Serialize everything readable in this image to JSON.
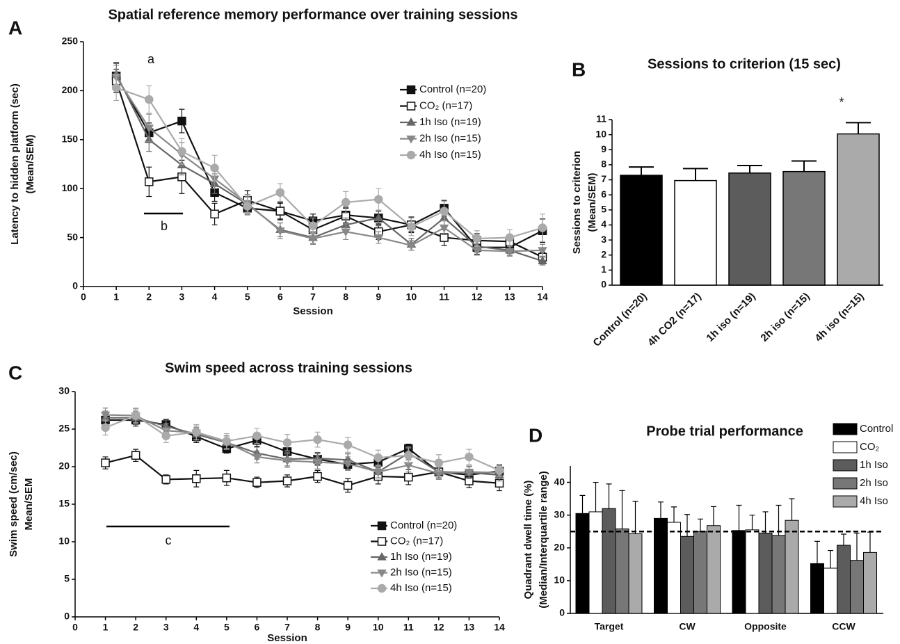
{
  "chart_data": [
    {
      "type": "line",
      "panel_label": "A",
      "title": "Spatial reference memory performance over training sessions",
      "xlabel": "Session",
      "ylabel": [
        "Latency to hidden platform (sec)",
        "(Mean/SEM)"
      ],
      "x": [
        1,
        2,
        3,
        4,
        5,
        6,
        7,
        8,
        9,
        10,
        11,
        12,
        13,
        14
      ],
      "xlim": [
        0,
        14
      ],
      "xticks": [
        0,
        1,
        2,
        3,
        4,
        5,
        6,
        7,
        8,
        9,
        10,
        11,
        12,
        13,
        14
      ],
      "ylim": [
        0,
        250
      ],
      "yticks": [
        0,
        50,
        100,
        150,
        200,
        250
      ],
      "annotations": [
        "a",
        "b"
      ],
      "series": [
        {
          "name": "Control (n=20)",
          "color": "#111111",
          "marker": "square",
          "values": [
            215,
            157,
            169,
            96,
            80,
            77,
            67,
            73,
            70,
            63,
            80,
            40,
            40,
            57
          ],
          "errors": [
            13,
            10,
            12,
            9,
            6,
            8,
            7,
            8,
            7,
            8,
            8,
            7,
            6,
            12
          ]
        },
        {
          "name": "CO₂ (n=17)",
          "color": "#111111",
          "marker": "open-square",
          "values": [
            210,
            107,
            112,
            74,
            88,
            77,
            58,
            72,
            56,
            63,
            50,
            47,
            46,
            30
          ],
          "errors": [
            12,
            15,
            17,
            11,
            10,
            9,
            8,
            8,
            8,
            7,
            8,
            7,
            7,
            5
          ]
        },
        {
          "name": "1h Iso (n=19)",
          "color": "#666666",
          "marker": "triangle",
          "values": [
            217,
            150,
            124,
            105,
            84,
            58,
            50,
            63,
            70,
            43,
            70,
            41,
            37,
            26
          ],
          "errors": [
            12,
            12,
            10,
            10,
            8,
            7,
            6,
            7,
            8,
            6,
            8,
            6,
            5,
            4
          ]
        },
        {
          "name": "2h Iso (n=15)",
          "color": "#888888",
          "marker": "down-triangle",
          "values": [
            214,
            162,
            135,
            110,
            85,
            57,
            49,
            56,
            50,
            42,
            60,
            37,
            36,
            37
          ],
          "errors": [
            12,
            14,
            12,
            10,
            9,
            8,
            6,
            8,
            6,
            5,
            7,
            5,
            5,
            6
          ]
        },
        {
          "name": "4h Iso (n=15)",
          "color": "#aaaaaa",
          "marker": "circle",
          "values": [
            203,
            191,
            138,
            121,
            82,
            96,
            62,
            86,
            89,
            61,
            77,
            49,
            50,
            60
          ],
          "errors": [
            13,
            14,
            13,
            13,
            9,
            9,
            8,
            11,
            11,
            9,
            10,
            8,
            8,
            14
          ]
        }
      ]
    },
    {
      "type": "bar",
      "panel_label": "B",
      "title": "Sessions to criterion (15 sec)",
      "ylabel": [
        "Sessions to criterion",
        "(Mean/SEM)"
      ],
      "categories": [
        "Control (n=20)",
        "4h CO2 (n=17)",
        "1h iso (n=19)",
        "2h iso (n=15)",
        "4h iso (n=15)"
      ],
      "values": [
        7.3,
        6.95,
        7.45,
        7.55,
        10.05
      ],
      "errors": [
        0.55,
        0.8,
        0.5,
        0.7,
        0.75
      ],
      "colors": [
        "#000000",
        "#ffffff",
        "#5c5c5c",
        "#777777",
        "#aaaaaa"
      ],
      "ylim": [
        0,
        11
      ],
      "yticks": [
        0,
        1,
        2,
        3,
        4,
        5,
        6,
        7,
        8,
        9,
        10,
        11
      ],
      "annotations": [
        "*"
      ]
    },
    {
      "type": "line",
      "panel_label": "C",
      "title": "Swim speed across training sessions",
      "xlabel": "Session",
      "ylabel": [
        "Swim speed (cm/sec)",
        "Mean/SEM"
      ],
      "x": [
        1,
        2,
        3,
        4,
        5,
        6,
        7,
        8,
        9,
        10,
        11,
        12,
        13,
        14
      ],
      "xlim": [
        0,
        14
      ],
      "xticks": [
        0,
        1,
        2,
        3,
        4,
        5,
        6,
        7,
        8,
        9,
        10,
        11,
        12,
        13,
        14
      ],
      "ylim": [
        0,
        30
      ],
      "yticks": [
        0,
        5,
        10,
        15,
        20,
        25,
        30
      ],
      "annotations": [
        "c"
      ],
      "series": [
        {
          "name": "Control (n=20)",
          "color": "#111111",
          "marker": "square",
          "values": [
            26.2,
            26.2,
            25.6,
            24,
            22.4,
            23.5,
            22,
            21,
            20.3,
            20.6,
            22.4,
            19.3,
            18.9,
            19.4
          ],
          "errors": [
            0.8,
            0.8,
            0.7,
            0.8,
            0.6,
            0.8,
            0.9,
            0.8,
            0.7,
            0.7,
            0.6,
            0.8,
            0.7,
            0.8
          ]
        },
        {
          "name": "CO₂ (n=17)",
          "color": "#111111",
          "marker": "open-square",
          "values": [
            20.5,
            21.5,
            18.3,
            18.4,
            18.5,
            17.9,
            18.1,
            18.7,
            17.5,
            18.7,
            18.6,
            19.3,
            18.1,
            17.8
          ],
          "errors": [
            0.8,
            0.8,
            0.6,
            1.1,
            1.0,
            0.7,
            0.8,
            0.8,
            0.9,
            1.0,
            1.0,
            0.8,
            0.9,
            1.0
          ]
        },
        {
          "name": "1h Iso (n=19)",
          "color": "#666666",
          "marker": "triangle",
          "values": [
            26.5,
            26.5,
            25.4,
            24.3,
            23.2,
            21.8,
            21,
            21.1,
            20.9,
            19.3,
            21.8,
            19.3,
            19.2,
            18.9
          ],
          "errors": [
            0.9,
            0.9,
            0.8,
            0.9,
            0.9,
            0.8,
            0.9,
            0.8,
            0.8,
            0.8,
            0.9,
            0.8,
            0.8,
            0.8
          ]
        },
        {
          "name": "2h Iso (n=15)",
          "color": "#888888",
          "marker": "down-triangle",
          "values": [
            26.9,
            26.8,
            24.8,
            24.5,
            23.2,
            21.3,
            20.8,
            20.6,
            20.4,
            19.3,
            20.2,
            19.1,
            19.3,
            19.2
          ],
          "errors": [
            0.9,
            0.9,
            0.9,
            0.9,
            0.9,
            0.8,
            0.9,
            0.9,
            0.9,
            0.8,
            0.9,
            0.8,
            0.8,
            0.8
          ]
        },
        {
          "name": "4h Iso (n=15)",
          "color": "#aaaaaa",
          "marker": "circle",
          "values": [
            25.2,
            26.8,
            24.1,
            24.6,
            23.4,
            24.1,
            23.2,
            23.6,
            22.9,
            21.2,
            21.5,
            20.5,
            21.3,
            19.5
          ],
          "errors": [
            1.0,
            1.0,
            0.9,
            1.0,
            1.0,
            1.0,
            1.1,
            1.0,
            1.0,
            1.0,
            1.0,
            1.1,
            1.0,
            0.8
          ]
        }
      ]
    },
    {
      "type": "bar",
      "panel_label": "D",
      "title": "Probe trial performance",
      "ylabel": [
        "Quadrant dwell time (%)",
        "(Median/Interquartile range)"
      ],
      "categories": [
        "Target",
        "CW",
        "Opposite",
        "CCW"
      ],
      "ylim": [
        0,
        45
      ],
      "yticks": [
        0,
        10,
        20,
        30,
        40
      ],
      "reference_line": 25,
      "series": [
        {
          "name": "Control",
          "color": "#000000",
          "values": [
            30.5,
            29,
            25.3,
            15.2
          ],
          "upper": [
            36,
            34,
            33,
            22
          ]
        },
        {
          "name": "CO₂",
          "color": "#ffffff",
          "values": [
            31,
            27.8,
            25.5,
            13.8
          ],
          "upper": [
            40,
            32.5,
            30,
            19.2
          ]
        },
        {
          "name": "1h Iso",
          "color": "#5c5c5c",
          "values": [
            32,
            23.5,
            24.5,
            20.8
          ],
          "upper": [
            39.5,
            30.2,
            31,
            24.2
          ]
        },
        {
          "name": "2h Iso",
          "color": "#777777",
          "values": [
            25.8,
            25,
            23.8,
            16.2
          ],
          "upper": [
            37.5,
            28.8,
            33,
            24.5
          ]
        },
        {
          "name": "4h Iso",
          "color": "#aaaaaa",
          "values": [
            24.3,
            26.8,
            28.4,
            18.6
          ],
          "upper": [
            34.2,
            32.6,
            35,
            24.8
          ]
        }
      ]
    }
  ]
}
